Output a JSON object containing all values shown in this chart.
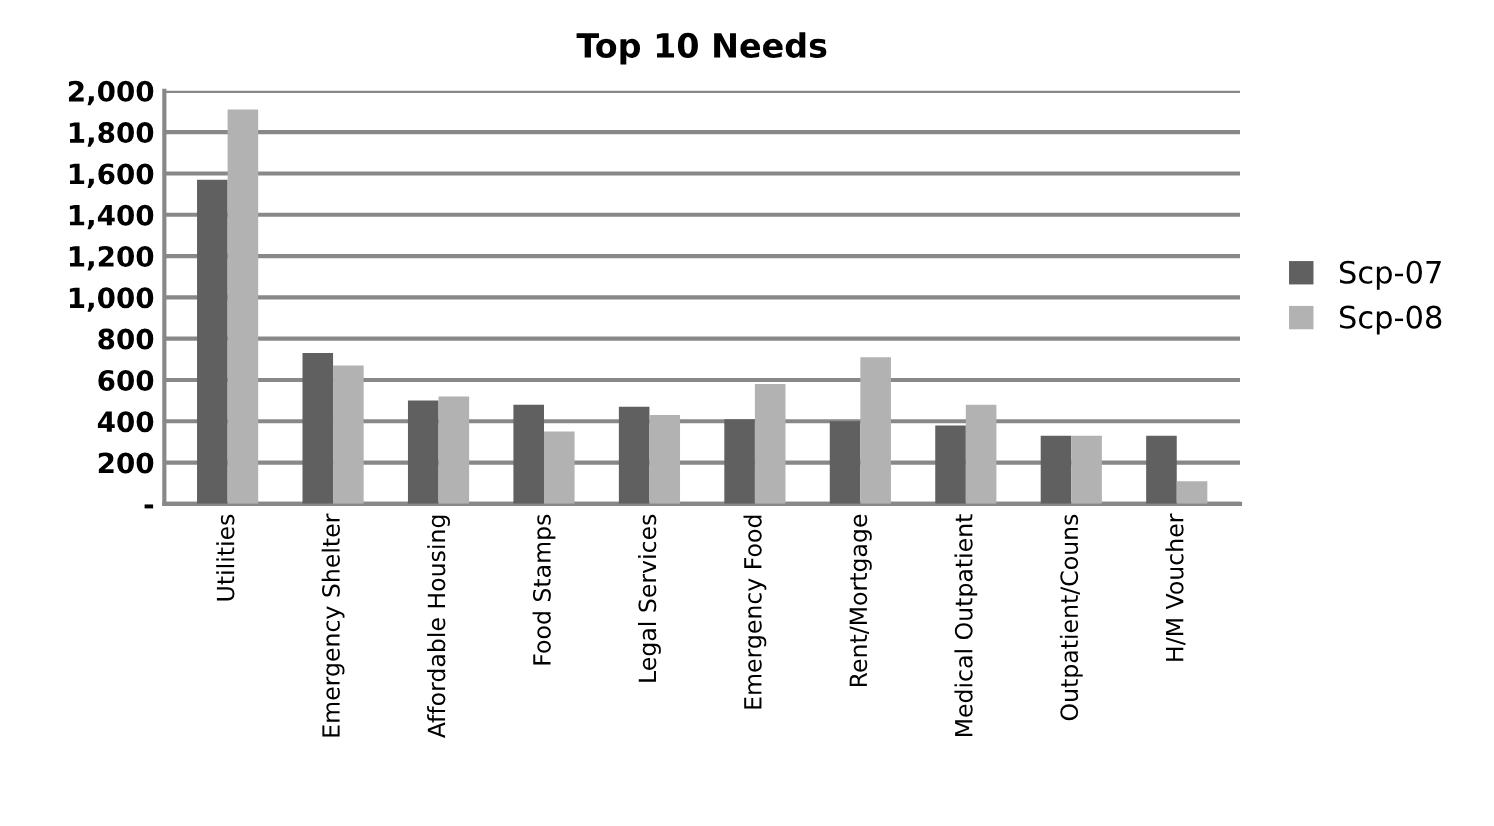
{
  "chart_data": {
    "type": "bar",
    "title": "Top 10 Needs",
    "categories": [
      "Utilities",
      "Emergency Shelter",
      "Affordable Housing",
      "Food Stamps",
      "Legal Services",
      "Emergency Food",
      "Rent/Mortgage",
      "Medical Outpatient",
      "Outpatient/Couns",
      "H/M Voucher"
    ],
    "series": [
      {
        "name": "Scp-07",
        "color": "#606060",
        "values": [
          1570,
          730,
          500,
          480,
          470,
          410,
          400,
          380,
          330,
          330
        ]
      },
      {
        "name": "Scp-08",
        "color": "#b2b2b2",
        "values": [
          1910,
          670,
          520,
          350,
          430,
          580,
          710,
          480,
          330,
          110
        ]
      }
    ],
    "ylim": [
      0,
      2000
    ],
    "yticks": [
      {
        "value": 0,
        "label": "-"
      },
      {
        "value": 200,
        "label": "200"
      },
      {
        "value": 400,
        "label": "400"
      },
      {
        "value": 600,
        "label": "600"
      },
      {
        "value": 800,
        "label": "800"
      },
      {
        "value": 1000,
        "label": "1,000"
      },
      {
        "value": 1200,
        "label": "1,200"
      },
      {
        "value": 1400,
        "label": "1,400"
      },
      {
        "value": 1600,
        "label": "1,600"
      },
      {
        "value": 1800,
        "label": "1,800"
      },
      {
        "value": 2000,
        "label": "2,000"
      }
    ],
    "grid": "y",
    "legend": "right"
  }
}
